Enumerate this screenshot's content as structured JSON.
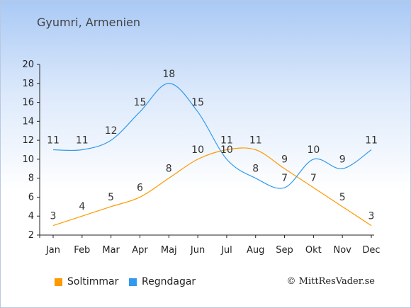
{
  "chart_data": {
    "type": "line",
    "title": "Gyumri, Armenien",
    "categories": [
      "Jan",
      "Feb",
      "Mar",
      "Apr",
      "Maj",
      "Jun",
      "Jul",
      "Aug",
      "Sep",
      "Okt",
      "Nov",
      "Dec"
    ],
    "ylim": [
      2,
      20
    ],
    "yticks": [
      2,
      4,
      6,
      8,
      10,
      12,
      14,
      16,
      18,
      20
    ],
    "grid": false,
    "legend_position": "bottom-left",
    "series": [
      {
        "name": "Soltimmar",
        "color": "#ff9900",
        "values": [
          3,
          4,
          5,
          6,
          8,
          10,
          11,
          11,
          9,
          7,
          5,
          3
        ]
      },
      {
        "name": "Regndagar",
        "color": "#3399ee",
        "values": [
          11,
          11,
          12,
          15,
          18,
          15,
          10,
          8,
          7,
          10,
          9,
          11
        ]
      }
    ]
  },
  "copyright": "© MittResVader.se"
}
